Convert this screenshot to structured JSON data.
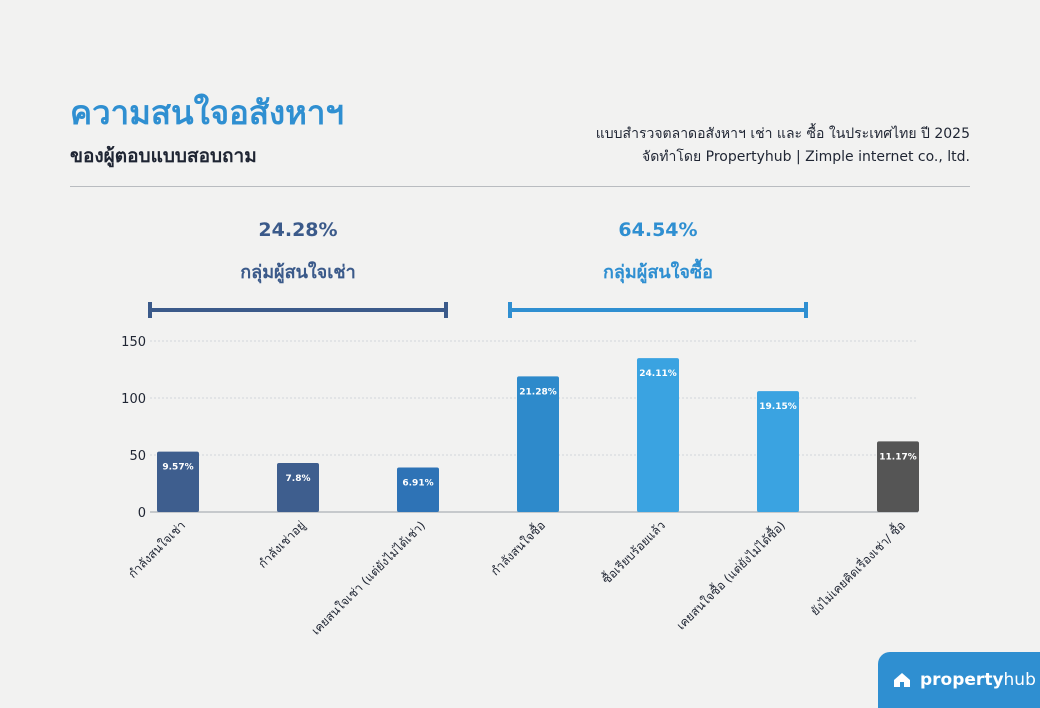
{
  "header": {
    "title": "ความสนใจอสังหาฯ",
    "subtitle": "ของผู้ตอบแบบสอบถาม",
    "source_line1": "แบบสำรวจตลาดอสังหาฯ เช่า และ ซื้อ ในประเทศไทย ปี 2025",
    "source_line2": "จัดทำโดย Propertyhub | Zimple internet co., ltd."
  },
  "groups": [
    {
      "percent": "24.28%",
      "label": "กลุ่มผู้สนใจเช่า",
      "color": "#3b5a8a",
      "from_index": 0,
      "to_index": 2
    },
    {
      "percent": "64.54%",
      "label": "กลุ่มผู้สนใจซื้อ",
      "color": "#2f8fd1",
      "from_index": 3,
      "to_index": 5
    }
  ],
  "chart_data": {
    "type": "bar",
    "title": "",
    "xlabel": "",
    "ylabel": "",
    "ylim": [
      0,
      150
    ],
    "yticks": [
      0,
      50,
      100,
      150
    ],
    "grid": true,
    "categories": [
      "กำลังสนใจเช่า",
      "กำลังเช่าอยู่",
      "เคยสนใจเช่า (แต่ยังไม่ได้เช่า)",
      "กำลังสนใจซื้อ",
      "ซื้อเรียบร้อยแล้ว",
      "เคยสนใจซื้อ (แต่ยังไม่ได้ซื้อ)",
      "ยังไม่เคยคิดเรื่องเช่า/ ซื้อ"
    ],
    "values": [
      53,
      43,
      39,
      119,
      135,
      106,
      62
    ],
    "labels": [
      "9.57%",
      "7.8%",
      "6.91%",
      "21.28%",
      "24.11%",
      "19.15%",
      "11.17%"
    ],
    "colors": [
      "#3e5e8e",
      "#3e5e8e",
      "#2e73b6",
      "#2e8acb",
      "#3aa3e1",
      "#3aa3e1",
      "#555555"
    ]
  },
  "logo": {
    "brand_bold": "property",
    "brand_light": "hub"
  }
}
